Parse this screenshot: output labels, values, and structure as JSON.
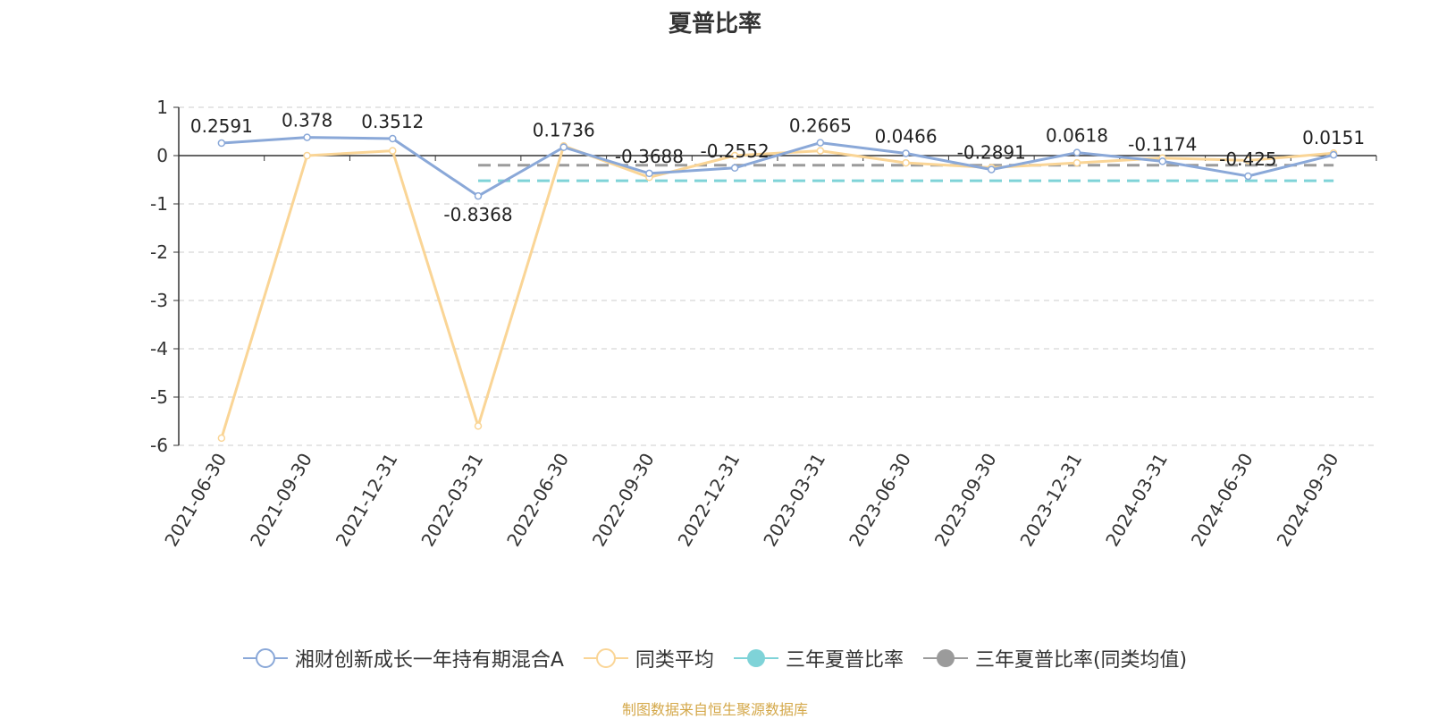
{
  "chart_data": {
    "type": "line",
    "title": "夏普比率",
    "categories": [
      "2021-06-30",
      "2021-09-30",
      "2021-12-31",
      "2022-03-31",
      "2022-06-30",
      "2022-09-30",
      "2022-12-31",
      "2023-03-31",
      "2023-06-30",
      "2023-09-30",
      "2023-12-31",
      "2024-03-31",
      "2024-06-30",
      "2024-09-30"
    ],
    "ylim": [
      -6,
      1
    ],
    "yticks": [
      1,
      0,
      -1,
      -2,
      -3,
      -4,
      -5,
      -6
    ],
    "grid": true,
    "legend_position": "bottom",
    "series": [
      {
        "name": "湘财创新成长一年持有期混合A",
        "color": "#8aa8d8",
        "values": [
          0.2591,
          0.378,
          0.3512,
          -0.8368,
          0.1736,
          -0.3688,
          -0.2552,
          0.2665,
          0.0466,
          -0.2891,
          0.0618,
          -0.1174,
          -0.425,
          0.0151
        ],
        "labels": [
          "0.2591",
          "0.378",
          "0.3512",
          "-0.8368",
          "0.1736",
          "-0.3688",
          "-0.2552",
          "0.2665",
          "0.0466",
          "-0.2891",
          "0.0618",
          "-0.1174",
          "-0.425",
          "0.0151"
        ]
      },
      {
        "name": "同类平均",
        "color": "#fad596",
        "values": [
          -5.85,
          0.0,
          0.1,
          -5.6,
          0.2,
          -0.45,
          0.0,
          0.1,
          -0.15,
          -0.25,
          -0.15,
          -0.05,
          -0.1,
          0.05
        ]
      },
      {
        "name": "三年夏普比率",
        "color": "#7fd3d8",
        "type": "dashed-line",
        "start_index": 3,
        "value": -0.52
      },
      {
        "name": "三年夏普比率(同类均值)",
        "color": "#9b9b9b",
        "type": "dashed-line",
        "start_index": 3,
        "value": -0.2
      }
    ]
  },
  "footer": {
    "source": "制图数据来自恒生聚源数据库"
  }
}
